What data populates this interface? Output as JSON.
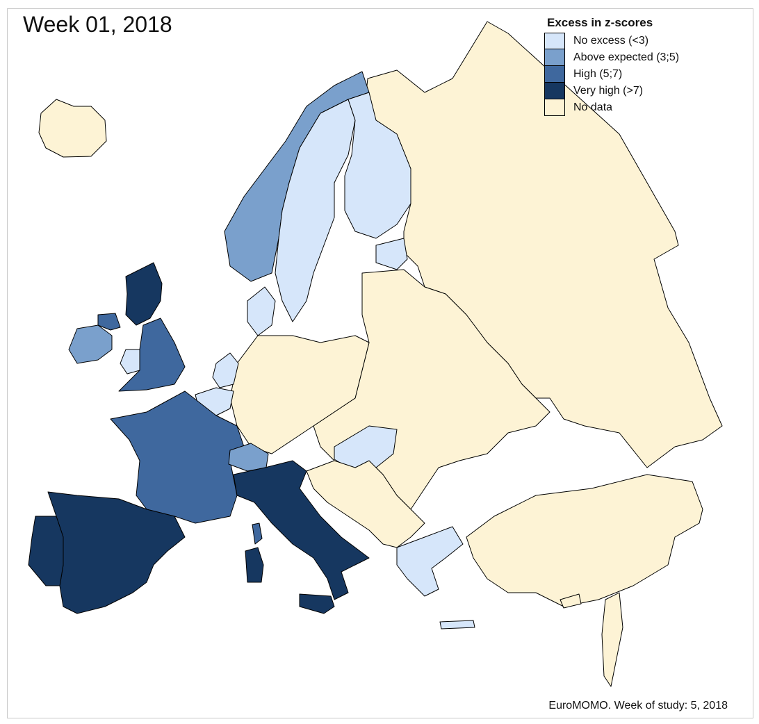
{
  "title": "Week 01, 2018",
  "legend": {
    "title": "Excess in z-scores",
    "items": [
      {
        "label": "No excess (<3)",
        "color": "#d6e6fa"
      },
      {
        "label": "Above expected (3;5)",
        "color": "#7aa0cc"
      },
      {
        "label": "High (5;7)",
        "color": "#3f689e"
      },
      {
        "label": "Very high (>7)",
        "color": "#163760"
      },
      {
        "label": "No data",
        "color": "#fdf3d5"
      }
    ]
  },
  "footer": "EuroMOMO. Week of study: 5, 2018",
  "regions": [
    {
      "name": "Iceland",
      "category": "No data"
    },
    {
      "name": "Norway",
      "category": "Above expected (3;5)"
    },
    {
      "name": "Sweden",
      "category": "No excess (<3)"
    },
    {
      "name": "Finland",
      "category": "No excess (<3)"
    },
    {
      "name": "Estonia",
      "category": "No excess (<3)"
    },
    {
      "name": "Denmark",
      "category": "No excess (<3)"
    },
    {
      "name": "Scotland",
      "category": "Very high (>7)"
    },
    {
      "name": "Northern Ireland",
      "category": "High (5;7)"
    },
    {
      "name": "Ireland",
      "category": "Above expected (3;5)"
    },
    {
      "name": "England",
      "category": "High (5;7)"
    },
    {
      "name": "Wales",
      "category": "No excess (<3)"
    },
    {
      "name": "Netherlands",
      "category": "No excess (<3)"
    },
    {
      "name": "Belgium",
      "category": "No excess (<3)"
    },
    {
      "name": "France",
      "category": "High (5;7)"
    },
    {
      "name": "Switzerland",
      "category": "Above expected (3;5)"
    },
    {
      "name": "Spain",
      "category": "Very high (>7)"
    },
    {
      "name": "Portugal",
      "category": "Very high (>7)"
    },
    {
      "name": "Italy",
      "category": "Very high (>7)"
    },
    {
      "name": "Hungary",
      "category": "No excess (<3)"
    },
    {
      "name": "Greece",
      "category": "No excess (<3)"
    },
    {
      "name": "Germany",
      "category": "No data"
    },
    {
      "name": "Russia",
      "category": "No data"
    }
  ]
}
